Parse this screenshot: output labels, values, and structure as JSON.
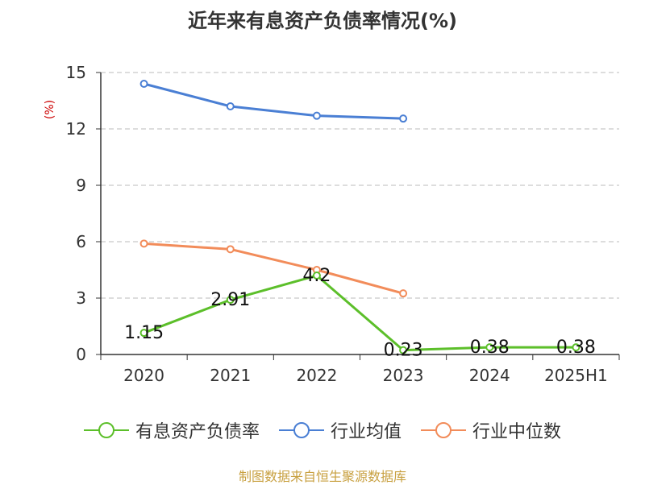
{
  "title": "近年来有息资产负债率情况(%)",
  "unit_label": "(%)",
  "source": "制图数据来自恒生聚源数据库",
  "colors": {
    "unit": "#cc0000",
    "source": "#c8a040",
    "axis": "#333333",
    "grid": "#bbbbbb"
  },
  "chart_data": {
    "type": "line",
    "title": "近年来有息资产负债率情况(%)",
    "ylabel": "(%)",
    "categories": [
      "2020",
      "2021",
      "2022",
      "2023",
      "2024",
      "2025H1"
    ],
    "ylim": [
      0,
      15
    ],
    "yticks": [
      0,
      3,
      6,
      9,
      12,
      15
    ],
    "grid": true,
    "legend_position": "bottom",
    "series": [
      {
        "name": "有息资产负债率",
        "color": "#5cbf2a",
        "values": [
          1.15,
          2.91,
          4.2,
          0.23,
          0.38,
          0.38
        ],
        "labels": [
          "1.15",
          "2.91",
          "4.2",
          "0.23",
          "0.38",
          "0.38"
        ]
      },
      {
        "name": "行业均值",
        "color": "#4a7fd4",
        "values": [
          14.4,
          13.2,
          12.7,
          12.55,
          null,
          null
        ]
      },
      {
        "name": "行业中位数",
        "color": "#f28c5a",
        "values": [
          5.9,
          5.6,
          4.5,
          3.25,
          null,
          null
        ]
      }
    ]
  }
}
